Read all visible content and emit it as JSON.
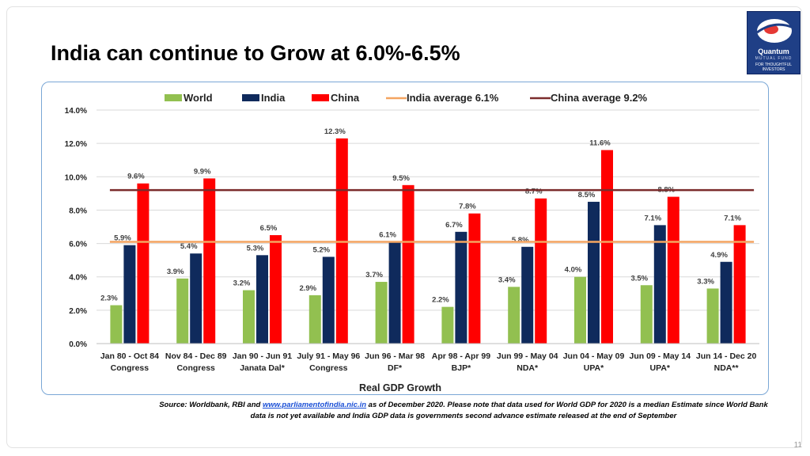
{
  "slide": {
    "title": "India can continue to Grow at 6.0%-6.5%",
    "page_number": "11",
    "logo": {
      "brand": "Quantum",
      "sub": "MUTUAL FUND",
      "tagline_1": "FOR THOUGHTFUL",
      "tagline_2": "INVESTORS"
    },
    "source_prefix": "Source: Worldbank, RBI and ",
    "source_link": "www.parliamentofindia.nic.in",
    "source_suffix": " as of December 2020. Please note that data used for World GDP for 2020 is a median Estimate since World Bank data is not yet available and India GDP data is governments second advance estimate released at the end of September"
  },
  "colors": {
    "world": "#92c050",
    "india": "#0f2a5c",
    "china": "#ff0000",
    "india_avg": "#f4a460",
    "china_avg": "#7b2c2c"
  },
  "chart_data": {
    "type": "bar",
    "xlabel": "Real GDP Growth",
    "ylabel": "",
    "ylim": [
      0,
      14
    ],
    "y_ticks": [
      "0.0%",
      "2.0%",
      "4.0%",
      "6.0%",
      "8.0%",
      "10.0%",
      "12.0%",
      "14.0%"
    ],
    "grid": true,
    "legend_position": "top",
    "categories": [
      [
        "Jan 80 - Oct 84",
        "Congress"
      ],
      [
        "Nov 84 - Dec 89",
        "Congress"
      ],
      [
        "Jan 90 - Jun 91",
        "Janata Dal*"
      ],
      [
        "July 91 - May 96",
        "Congress"
      ],
      [
        "Jun 96 - Mar 98",
        "DF*"
      ],
      [
        "Apr 98 - Apr 99",
        "BJP*"
      ],
      [
        "Jun 99 - May 04",
        "NDA*"
      ],
      [
        "Jun 04 - May 09",
        "UPA*"
      ],
      [
        "Jun 09 - May 14",
        "UPA*"
      ],
      [
        "Jun 14 - Dec 20",
        "NDA**"
      ]
    ],
    "series": [
      {
        "name": "World",
        "values": [
          2.3,
          3.9,
          3.2,
          2.9,
          3.7,
          2.2,
          3.4,
          4.0,
          3.5,
          3.3
        ],
        "labels": [
          "2.3%",
          "3.9%",
          "3.2%",
          "2.9%",
          "3.7%",
          "2.2%",
          "3.4%",
          "4.0%",
          "3.5%",
          "3.3%"
        ]
      },
      {
        "name": "India",
        "values": [
          5.9,
          5.4,
          5.3,
          5.2,
          6.1,
          6.7,
          5.8,
          8.5,
          7.1,
          4.9
        ],
        "labels": [
          "5.9%",
          "5.4%",
          "5.3%",
          "5.2%",
          "6.1%",
          "6.7%",
          "5.8%",
          "8.5%",
          "7.1%",
          "4.9%"
        ]
      },
      {
        "name": "China",
        "values": [
          9.6,
          9.9,
          6.5,
          12.3,
          9.5,
          7.8,
          8.7,
          11.6,
          8.8,
          7.1
        ],
        "labels": [
          "9.6%",
          "9.9%",
          "6.5%",
          "12.3%",
          "9.5%",
          "7.8%",
          "8.7%",
          "11.6%",
          "8.8%",
          "7.1%"
        ]
      }
    ],
    "reference_lines": [
      {
        "name": "India average 6.1%",
        "value": 6.1
      },
      {
        "name": "China average 9.2%",
        "value": 9.2
      }
    ]
  }
}
